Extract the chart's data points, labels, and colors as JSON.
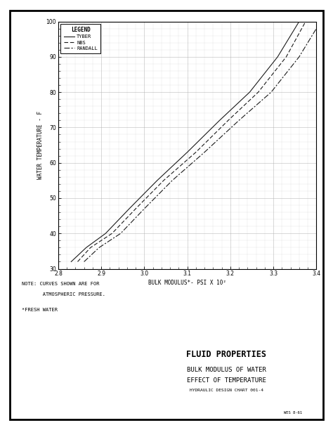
{
  "title1": "FLUID PROPERTIES",
  "title2": "BULK MODULUS OF WATER",
  "title3": "EFFECT OF TEMPERATURE",
  "title4": "HYDRAULIC DESIGN CHART 001-4",
  "xlabel": "BULK MODULUS*- PSI X 10²",
  "ylabel": "WATER TEMPERATURE - °F",
  "xlim": [
    2.8,
    3.4
  ],
  "ylim": [
    30,
    100
  ],
  "xticks": [
    2.8,
    2.9,
    3.0,
    3.1,
    3.2,
    3.3,
    3.4
  ],
  "yticks": [
    30,
    40,
    50,
    60,
    70,
    80,
    90,
    100
  ],
  "note1": "NOTE: CURVES SHOWN ARE FOR",
  "note2": "       ATMOSPHERIC PRESSURE.",
  "note3": "*FRESH WATER",
  "legend_title": "LEGEND",
  "legend_entries": [
    "TYBER",
    "NBS",
    "RANDALL"
  ],
  "tyber_x": [
    2.83,
    2.865,
    2.91,
    2.965,
    3.03,
    3.1,
    3.175,
    3.245,
    3.31,
    3.36
  ],
  "tyber_y": [
    32,
    36,
    40,
    47,
    55,
    63,
    72,
    80,
    90,
    100
  ],
  "nbs_x": [
    2.845,
    2.875,
    2.925,
    2.98,
    3.045,
    3.12,
    3.195,
    3.265,
    3.33,
    3.375
  ],
  "nbs_y": [
    32,
    36,
    40,
    47,
    55,
    63,
    72,
    80,
    90,
    100
  ],
  "randall_x": [
    2.86,
    2.895,
    2.945,
    3.0,
    3.065,
    3.14,
    3.22,
    3.295,
    3.36,
    3.41
  ],
  "randall_y": [
    32,
    36,
    40,
    47,
    55,
    63,
    72,
    80,
    90,
    100
  ],
  "bg_color": "#ffffff",
  "line_color": "#1a1a1a",
  "border_color": "#000000",
  "grid_color": "#aaaaaa"
}
